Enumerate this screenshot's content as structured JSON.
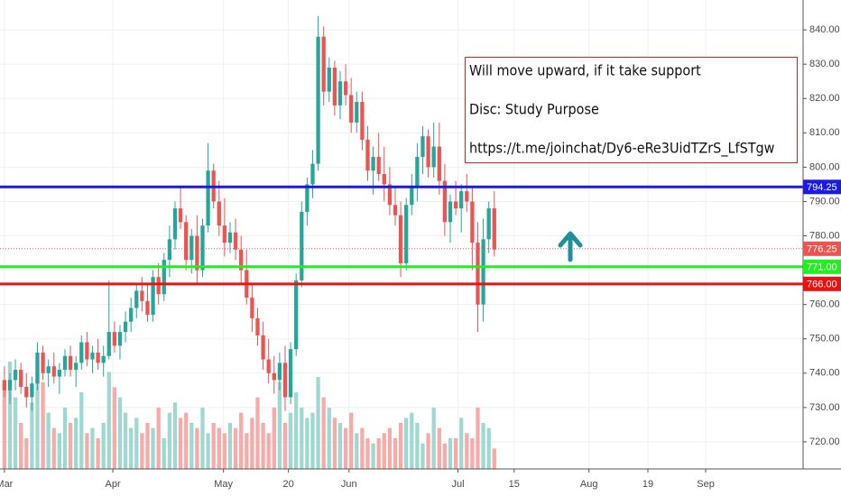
{
  "chart_data": {
    "type": "candlestick",
    "xlim": [
      -0.8,
      145.1
    ],
    "xticks": [
      {
        "value": 0,
        "label": "Mar"
      },
      {
        "value": 19.7,
        "label": "Apr"
      },
      {
        "value": 39.8,
        "label": "May"
      },
      {
        "value": 51.6,
        "label": "20"
      },
      {
        "value": 62.6,
        "label": "Jun"
      },
      {
        "value": 82.4,
        "label": "Jul"
      },
      {
        "value": 92.6,
        "label": "15"
      },
      {
        "value": 106.2,
        "label": "Aug"
      },
      {
        "value": 116.9,
        "label": "19"
      },
      {
        "value": 127.4,
        "label": "Sep"
      }
    ],
    "ylim": [
      712.1,
      848.7
    ],
    "yticks": [
      {
        "value": 720,
        "label": "720.00"
      },
      {
        "value": 730,
        "label": "730.00"
      },
      {
        "value": 740,
        "label": "740.00"
      },
      {
        "value": 750,
        "label": "750.00"
      },
      {
        "value": 760,
        "label": "760.00"
      },
      {
        "value": 770,
        "label": "770.00"
      },
      {
        "value": 780,
        "label": "780.00"
      },
      {
        "value": 790,
        "label": "790.00"
      },
      {
        "value": 800,
        "label": "800.00"
      },
      {
        "value": 810,
        "label": "810.00"
      },
      {
        "value": 820,
        "label": "820.00"
      },
      {
        "value": 830,
        "label": "830.00"
      },
      {
        "value": 840,
        "label": "840.00"
      }
    ],
    "grid": true,
    "up_color": "#26a69a",
    "down_color": "#ef5350",
    "volume_up_color": "#9fd8d1",
    "volume_down_color": "#f7aaa8",
    "open": [
      738,
      735,
      738,
      741,
      736,
      733,
      737,
      746,
      740,
      742,
      739,
      741,
      745,
      741,
      743,
      749,
      744,
      746,
      743,
      745,
      752,
      748,
      752,
      755,
      759,
      764,
      761,
      757,
      768,
      763,
      773,
      779,
      788,
      784,
      773,
      780,
      770,
      783,
      799,
      790,
      783,
      778,
      781,
      776,
      770,
      762,
      756,
      751,
      744,
      740,
      738,
      743,
      733,
      747,
      767,
      787,
      795,
      801,
      838,
      822,
      829,
      818,
      825,
      821,
      813,
      819,
      808,
      799,
      803,
      798,
      795,
      789,
      786,
      772,
      789,
      794,
      803,
      809,
      800,
      806,
      796,
      784,
      790,
      788,
      793,
      790,
      778,
      760,
      779,
      788
    ],
    "high": [
      742,
      740,
      744,
      743,
      740,
      739,
      749,
      748,
      744,
      746,
      743,
      747,
      748,
      745,
      751,
      752,
      748,
      750,
      748,
      767,
      755,
      754,
      758,
      762,
      766,
      768,
      766,
      770,
      772,
      775,
      783,
      790,
      794,
      786,
      782,
      786,
      785,
      807,
      801,
      796,
      791,
      784,
      785,
      780,
      776,
      766,
      759,
      755,
      750,
      745,
      746,
      748,
      749,
      769,
      790,
      797,
      805,
      844,
      841,
      832,
      831,
      828,
      830,
      826,
      822,
      822,
      812,
      806,
      810,
      806,
      800,
      794,
      790,
      791,
      798,
      807,
      812,
      811,
      813,
      813,
      801,
      792,
      796,
      795,
      798,
      794,
      784,
      785,
      790,
      793
    ],
    "low": [
      733,
      731,
      735,
      734,
      730,
      729,
      735,
      738,
      736,
      737,
      734,
      739,
      739,
      736,
      741,
      742,
      740,
      741,
      739,
      744,
      746,
      744,
      749,
      752,
      756,
      758,
      755,
      755,
      760,
      761,
      768,
      776,
      782,
      770,
      769,
      766,
      768,
      781,
      788,
      780,
      774,
      775,
      773,
      766,
      760,
      752,
      748,
      741,
      737,
      734,
      735,
      729,
      731,
      745,
      765,
      783,
      791,
      799,
      818,
      819,
      815,
      814,
      818,
      810,
      810,
      805,
      796,
      792,
      796,
      790,
      786,
      783,
      768,
      770,
      786,
      790,
      798,
      797,
      797,
      792,
      780,
      778,
      786,
      781,
      787,
      770,
      752,
      755,
      775,
      774
    ],
    "close": [
      735,
      738,
      741,
      736,
      733,
      737,
      746,
      740,
      742,
      739,
      741,
      745,
      741,
      743,
      749,
      744,
      746,
      743,
      745,
      752,
      748,
      752,
      755,
      759,
      764,
      761,
      757,
      768,
      763,
      773,
      779,
      788,
      784,
      773,
      780,
      770,
      783,
      799,
      790,
      783,
      778,
      781,
      776,
      770,
      762,
      756,
      751,
      744,
      740,
      738,
      743,
      733,
      747,
      767,
      787,
      795,
      801,
      838,
      822,
      829,
      818,
      825,
      821,
      813,
      819,
      808,
      799,
      803,
      798,
      795,
      789,
      786,
      772,
      789,
      794,
      803,
      809,
      800,
      806,
      796,
      784,
      790,
      788,
      793,
      790,
      778,
      760,
      779,
      788,
      776
    ],
    "volume": [
      85,
      105,
      70,
      45,
      30,
      65,
      105,
      85,
      55,
      40,
      35,
      60,
      45,
      50,
      75,
      35,
      40,
      30,
      45,
      95,
      80,
      70,
      55,
      40,
      50,
      35,
      45,
      40,
      60,
      30,
      55,
      65,
      50,
      55,
      45,
      40,
      60,
      35,
      45,
      40,
      35,
      45,
      40,
      55,
      35,
      50,
      70,
      45,
      35,
      60,
      85,
      45,
      55,
      75,
      60,
      50,
      55,
      90,
      70,
      60,
      50,
      45,
      40,
      55,
      35,
      40,
      30,
      25,
      30,
      35,
      40,
      30,
      45,
      50,
      55,
      45,
      25,
      35,
      60,
      40,
      25,
      30,
      30,
      50,
      35,
      30,
      60,
      45,
      40,
      20
    ],
    "vlim": [
      0,
      150
    ],
    "levels": [
      {
        "value": 794.25,
        "label": "794.25",
        "color": "#1a1ae6"
      },
      {
        "value": 771,
        "label": "771.00",
        "color": "#22ee22"
      },
      {
        "value": 766,
        "label": "766.00",
        "color": "#ee1111"
      }
    ],
    "last_price": {
      "value": 776.25,
      "label": "776.25",
      "color": "#ef5350"
    },
    "annotation": [
      "Will move upward, if it take support",
      "Disc: Study Purpose",
      "https://t.me/joinchat/Dy6-eRe3UidTZrS_LfSTgw"
    ]
  }
}
